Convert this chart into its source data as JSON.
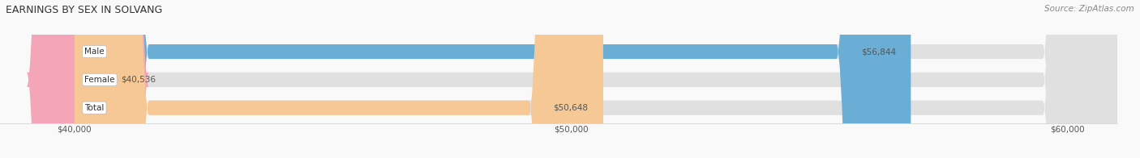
{
  "title": "EARNINGS BY SEX IN SOLVANG",
  "source": "Source: ZipAtlas.com",
  "categories": [
    "Male",
    "Female",
    "Total"
  ],
  "values": [
    56844,
    40536,
    50648
  ],
  "bar_colors": [
    "#6aaed6",
    "#f4a6b8",
    "#f5c896"
  ],
  "bar_bg_color": "#e0e0e0",
  "value_labels": [
    "$56,844",
    "$40,536",
    "$50,648"
  ],
  "xmin": 40000,
  "xmax": 61000,
  "xticks": [
    40000,
    50000,
    60000
  ],
  "xtick_labels": [
    "$40,000",
    "$50,000",
    "$60,000"
  ],
  "background_color": "#f9f9f9",
  "title_fontsize": 9,
  "source_fontsize": 7.5,
  "label_fontsize": 7.5,
  "bar_height": 0.52,
  "bar_label_color": "#555555",
  "value_inside_color": "#555555"
}
